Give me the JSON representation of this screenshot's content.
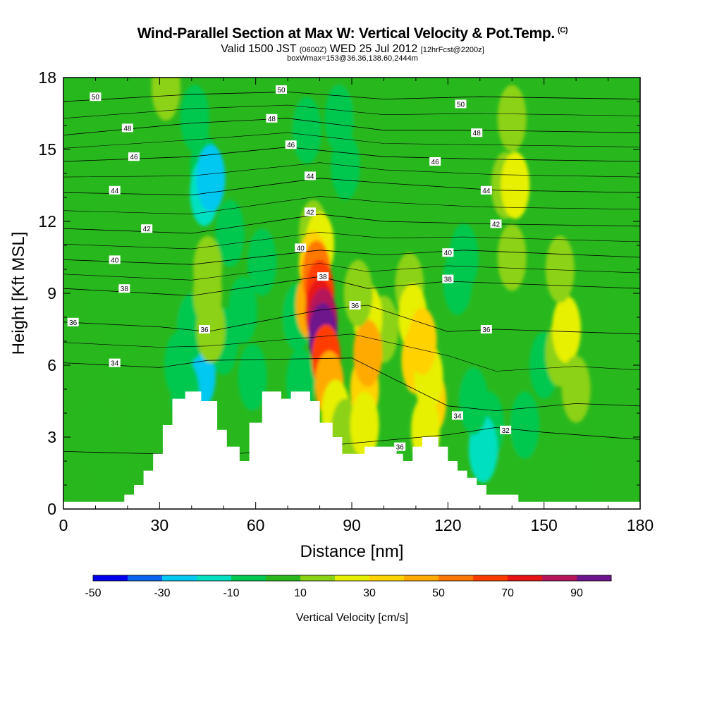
{
  "header": {
    "title": "Wind-Parallel Section at Max W: Vertical Velocity & Pot.Temp.",
    "title_mark": "(C)",
    "valid_prefix": "Valid 1500 JST",
    "valid_utc": "(0600Z)",
    "valid_date": "WED 25 Jul 2012",
    "forecast": "[12hrFcst@2200z]",
    "box_info": "boxWmax=153@36.36,138.60,2444m"
  },
  "chart_data": {
    "type": "heatmap",
    "xlabel": "Distance [nm]",
    "ylabel": "Height [Kft MSL]",
    "xlim": [
      0,
      180
    ],
    "ylim": [
      0,
      18
    ],
    "x_ticks": [
      "0",
      "30",
      "60",
      "90",
      "120",
      "150",
      "180"
    ],
    "y_ticks": [
      "0",
      "3",
      "6",
      "9",
      "12",
      "15",
      "18"
    ],
    "colorbar": {
      "label": "Vertical Velocity [cm/s]",
      "tick_labels": [
        "-50",
        "-30",
        "-10",
        "10",
        "30",
        "50",
        "70",
        "90"
      ],
      "levels": [
        -50,
        -40,
        -30,
        -20,
        -10,
        0,
        10,
        20,
        30,
        40,
        50,
        60,
        70,
        80,
        90,
        100
      ],
      "colors": [
        "#0000ee",
        "#0a64f0",
        "#00c8f0",
        "#00e0c0",
        "#00c850",
        "#28b81e",
        "#8cd214",
        "#e6f000",
        "#ffd200",
        "#ffaa00",
        "#ff7800",
        "#ff3c00",
        "#e61414",
        "#b4145a",
        "#6e148c"
      ]
    },
    "background_color": "#28b81e",
    "velocity_cells": [
      {
        "x": 2,
        "y": 16.8,
        "v": 5
      },
      {
        "x": 18,
        "y": 17.5,
        "v": 5
      },
      {
        "x": 32,
        "y": 17.6,
        "v": 12
      },
      {
        "x": 50,
        "y": 17.7,
        "v": 5
      },
      {
        "x": 70,
        "y": 16.5,
        "v": 5
      },
      {
        "x": 88,
        "y": 17.2,
        "v": 5
      },
      {
        "x": 105,
        "y": 16.8,
        "v": 5
      },
      {
        "x": 120,
        "y": 17.2,
        "v": 5
      },
      {
        "x": 10,
        "y": 14.5,
        "v": 5
      },
      {
        "x": 8,
        "y": 11.5,
        "v": 5
      },
      {
        "x": 12,
        "y": 9,
        "v": 5
      },
      {
        "x": 18,
        "y": 6.5,
        "v": 5
      },
      {
        "x": 10,
        "y": 3,
        "v": 5
      },
      {
        "x": 15,
        "y": 1.2,
        "v": 5
      },
      {
        "x": 35,
        "y": 9,
        "v": 5
      },
      {
        "x": 25,
        "y": 4,
        "v": 5
      },
      {
        "x": 62,
        "y": 12,
        "v": 5
      },
      {
        "x": 68,
        "y": 8,
        "v": 5
      },
      {
        "x": 100,
        "y": 12,
        "v": 5
      },
      {
        "x": 115,
        "y": 14,
        "v": 5
      },
      {
        "x": 125,
        "y": 6,
        "v": 5
      },
      {
        "x": 165,
        "y": 14,
        "v": 5
      },
      {
        "x": 175,
        "y": 9,
        "v": 5
      },
      {
        "x": 170,
        "y": 4,
        "v": 5
      },
      {
        "x": 160,
        "y": 1,
        "v": 5
      },
      {
        "x": 150,
        "y": 1.5,
        "v": 5
      },
      {
        "x": 140,
        "y": 2.5,
        "v": 5
      },
      {
        "x": 60,
        "y": 3,
        "v": 5
      },
      {
        "x": 44,
        "y": 14.2,
        "v": -10
      },
      {
        "x": 44,
        "y": 13.2,
        "v": -20
      },
      {
        "x": 46,
        "y": 13.8,
        "v": -30
      },
      {
        "x": 41,
        "y": 16.3,
        "v": -10
      },
      {
        "x": 52,
        "y": 11.5,
        "v": -10
      },
      {
        "x": 56,
        "y": 8.3,
        "v": -10
      },
      {
        "x": 42,
        "y": 6.2,
        "v": -20
      },
      {
        "x": 43,
        "y": 5.6,
        "v": -30
      },
      {
        "x": 40,
        "y": 7.6,
        "v": -10
      },
      {
        "x": 36,
        "y": 6,
        "v": -10
      },
      {
        "x": 38,
        "y": 4.8,
        "v": -10
      },
      {
        "x": 50,
        "y": 7,
        "v": -10
      },
      {
        "x": 59,
        "y": 5.5,
        "v": -10
      },
      {
        "x": 62,
        "y": 10.3,
        "v": -10
      },
      {
        "x": 76,
        "y": 15.8,
        "v": -10
      },
      {
        "x": 86,
        "y": 16.3,
        "v": -10
      },
      {
        "x": 88,
        "y": 14.3,
        "v": -10
      },
      {
        "x": 73,
        "y": 8,
        "v": -10
      },
      {
        "x": 74,
        "y": 5.3,
        "v": -10
      },
      {
        "x": 123,
        "y": 9.5,
        "v": -10
      },
      {
        "x": 125,
        "y": 10.5,
        "v": -10
      },
      {
        "x": 133,
        "y": 3.5,
        "v": -10
      },
      {
        "x": 131,
        "y": 2.5,
        "v": -20
      },
      {
        "x": 128,
        "y": 4.5,
        "v": -10
      },
      {
        "x": 150,
        "y": 6,
        "v": -10
      },
      {
        "x": 144,
        "y": 3.5,
        "v": -10
      },
      {
        "x": 45,
        "y": 9,
        "v": 10
      },
      {
        "x": 46,
        "y": 7.5,
        "v": 10
      },
      {
        "x": 138,
        "y": 13.5,
        "v": 10
      },
      {
        "x": 140,
        "y": 16.3,
        "v": 10
      },
      {
        "x": 140,
        "y": 10.5,
        "v": 10
      },
      {
        "x": 155,
        "y": 6.5,
        "v": 10
      },
      {
        "x": 157,
        "y": 7.5,
        "v": 20
      },
      {
        "x": 160,
        "y": 5,
        "v": 10
      },
      {
        "x": 155,
        "y": 10,
        "v": 10
      },
      {
        "x": 141,
        "y": 13.5,
        "v": 20
      },
      {
        "x": 45,
        "y": 10,
        "v": 10
      },
      {
        "x": 100,
        "y": 7.5,
        "v": 10
      },
      {
        "x": 78,
        "y": 11.5,
        "v": 10
      },
      {
        "x": 80,
        "y": 11,
        "v": 20
      },
      {
        "x": 78,
        "y": 10.2,
        "v": 30
      },
      {
        "x": 77,
        "y": 8.5,
        "v": 40
      },
      {
        "x": 79,
        "y": 9.8,
        "v": 50
      },
      {
        "x": 80,
        "y": 9,
        "v": 60
      },
      {
        "x": 80,
        "y": 8.2,
        "v": 70
      },
      {
        "x": 81,
        "y": 7.8,
        "v": 80
      },
      {
        "x": 81,
        "y": 7.2,
        "v": 90
      },
      {
        "x": 82,
        "y": 6.3,
        "v": 60
      },
      {
        "x": 83,
        "y": 5.2,
        "v": 40
      },
      {
        "x": 85,
        "y": 4,
        "v": 20
      },
      {
        "x": 88,
        "y": 3.2,
        "v": 10
      },
      {
        "x": 95,
        "y": 8,
        "v": 20
      },
      {
        "x": 94,
        "y": 5,
        "v": 30
      },
      {
        "x": 95,
        "y": 6.5,
        "v": 40
      },
      {
        "x": 94,
        "y": 3.5,
        "v": 20
      },
      {
        "x": 92,
        "y": 9,
        "v": 10
      },
      {
        "x": 108,
        "y": 9.3,
        "v": 10
      },
      {
        "x": 109,
        "y": 8,
        "v": 20
      },
      {
        "x": 110,
        "y": 6.2,
        "v": 30
      },
      {
        "x": 115,
        "y": 4.5,
        "v": 30
      },
      {
        "x": 114,
        "y": 5.5,
        "v": 20
      },
      {
        "x": 113,
        "y": 3.3,
        "v": 20
      },
      {
        "x": 112,
        "y": 7,
        "v": 30
      }
    ],
    "terrain_profile": [
      [
        0,
        0.3
      ],
      [
        19,
        0.3
      ],
      [
        19,
        0.6
      ],
      [
        22,
        0.6
      ],
      [
        22,
        1.0
      ],
      [
        25,
        1.0
      ],
      [
        25,
        1.6
      ],
      [
        28,
        1.6
      ],
      [
        28,
        2.3
      ],
      [
        31,
        2.3
      ],
      [
        31,
        3.5
      ],
      [
        34,
        3.5
      ],
      [
        34,
        4.6
      ],
      [
        38,
        4.6
      ],
      [
        38,
        4.9
      ],
      [
        43,
        4.9
      ],
      [
        43,
        4.5
      ],
      [
        48,
        4.5
      ],
      [
        48,
        3.3
      ],
      [
        51,
        3.3
      ],
      [
        51,
        2.6
      ],
      [
        55,
        2.6
      ],
      [
        55,
        2.0
      ],
      [
        58,
        2.0
      ],
      [
        58,
        3.6
      ],
      [
        62,
        3.6
      ],
      [
        62,
        4.9
      ],
      [
        68,
        4.9
      ],
      [
        68,
        4.6
      ],
      [
        71,
        4.6
      ],
      [
        71,
        4.9
      ],
      [
        77,
        4.9
      ],
      [
        77,
        4.5
      ],
      [
        80,
        4.5
      ],
      [
        80,
        3.6
      ],
      [
        84,
        3.6
      ],
      [
        84,
        3.0
      ],
      [
        87,
        3.0
      ],
      [
        87,
        2.3
      ],
      [
        94,
        2.3
      ],
      [
        94,
        2.6
      ],
      [
        104,
        2.6
      ],
      [
        104,
        2.3
      ],
      [
        106,
        2.3
      ],
      [
        106,
        2.0
      ],
      [
        109,
        2.0
      ],
      [
        109,
        2.6
      ],
      [
        112,
        2.6
      ],
      [
        112,
        3.0
      ],
      [
        117,
        3.0
      ],
      [
        117,
        2.6
      ],
      [
        120,
        2.6
      ],
      [
        120,
        2.0
      ],
      [
        123,
        2.0
      ],
      [
        123,
        1.6
      ],
      [
        126,
        1.6
      ],
      [
        126,
        1.3
      ],
      [
        129,
        1.3
      ],
      [
        129,
        1.0
      ],
      [
        132,
        1.0
      ],
      [
        132,
        0.6
      ],
      [
        142,
        0.6
      ],
      [
        142,
        0.3
      ],
      [
        180,
        0.3
      ]
    ],
    "isentropes": [
      {
        "value": 32,
        "points": [
          [
            0,
            2.4
          ],
          [
            30,
            2.3
          ],
          [
            45,
            2.2
          ],
          [
            120,
            3.1
          ],
          [
            135,
            3.4
          ],
          [
            150,
            3.2
          ],
          [
            180,
            2.9
          ]
        ]
      },
      {
        "value": 34,
        "points": [
          [
            0,
            6.1
          ],
          [
            30,
            5.9
          ],
          [
            45,
            6.2
          ],
          [
            90,
            6.3
          ],
          [
            120,
            4.3
          ],
          [
            135,
            4.1
          ],
          [
            160,
            4.4
          ],
          [
            180,
            4.3
          ]
        ]
      },
      {
        "value": 36,
        "points": [
          [
            0,
            7.8
          ],
          [
            30,
            7.6
          ],
          [
            45,
            7.4
          ],
          [
            80,
            8.3
          ],
          [
            95,
            8.5
          ],
          [
            120,
            7.4
          ],
          [
            135,
            7.5
          ],
          [
            180,
            7.3
          ]
        ]
      },
      {
        "value": 38,
        "points": [
          [
            0,
            9.2
          ],
          [
            40,
            8.9
          ],
          [
            80,
            9.7
          ],
          [
            95,
            9.2
          ],
          [
            120,
            9.5
          ],
          [
            180,
            9.2
          ]
        ]
      },
      {
        "value": 40,
        "points": [
          [
            0,
            10.4
          ],
          [
            40,
            10.2
          ],
          [
            80,
            10.8
          ],
          [
            100,
            10.6
          ],
          [
            125,
            10.8
          ],
          [
            180,
            10.5
          ]
        ]
      },
      {
        "value": 42,
        "points": [
          [
            0,
            11.7
          ],
          [
            40,
            11.5
          ],
          [
            80,
            12.3
          ],
          [
            100,
            12
          ],
          [
            130,
            11.9
          ],
          [
            180,
            11.8
          ]
        ]
      },
      {
        "value": 44,
        "points": [
          [
            0,
            13.2
          ],
          [
            40,
            13.1
          ],
          [
            80,
            13.8
          ],
          [
            100,
            13.6
          ],
          [
            135,
            13.3
          ],
          [
            180,
            13.2
          ]
        ]
      },
      {
        "value": 46,
        "points": [
          [
            0,
            14.5
          ],
          [
            40,
            14.7
          ],
          [
            70,
            15.1
          ],
          [
            100,
            14.7
          ],
          [
            130,
            14.6
          ],
          [
            180,
            14.5
          ]
        ]
      },
      {
        "value": 48,
        "points": [
          [
            0,
            15.6
          ],
          [
            40,
            16.1
          ],
          [
            70,
            16.3
          ],
          [
            100,
            15.8
          ],
          [
            130,
            15.8
          ],
          [
            180,
            15.7
          ]
        ]
      },
      {
        "value": 50,
        "points": [
          [
            0,
            17.0
          ],
          [
            40,
            17.3
          ],
          [
            70,
            17.4
          ],
          [
            100,
            17.1
          ],
          [
            130,
            17.2
          ],
          [
            180,
            17.1
          ]
        ]
      }
    ],
    "contour_labels": [
      {
        "text": "50",
        "x": 10,
        "y": 17.2
      },
      {
        "text": "50",
        "x": 68,
        "y": 17.5
      },
      {
        "text": "50",
        "x": 124,
        "y": 16.9
      },
      {
        "text": "48",
        "x": 20,
        "y": 15.9
      },
      {
        "text": "48",
        "x": 65,
        "y": 16.3
      },
      {
        "text": "48",
        "x": 129,
        "y": 15.7
      },
      {
        "text": "46",
        "x": 22,
        "y": 14.7
      },
      {
        "text": "46",
        "x": 71,
        "y": 15.2
      },
      {
        "text": "46",
        "x": 116,
        "y": 14.5
      },
      {
        "text": "44",
        "x": 16,
        "y": 13.3
      },
      {
        "text": "44",
        "x": 77,
        "y": 13.9
      },
      {
        "text": "44",
        "x": 132,
        "y": 13.3
      },
      {
        "text": "42",
        "x": 26,
        "y": 11.7
      },
      {
        "text": "42",
        "x": 77,
        "y": 12.4
      },
      {
        "text": "42",
        "x": 135,
        "y": 11.9
      },
      {
        "text": "40",
        "x": 16,
        "y": 10.4
      },
      {
        "text": "40",
        "x": 74,
        "y": 10.9
      },
      {
        "text": "40",
        "x": 120,
        "y": 10.7
      },
      {
        "text": "38",
        "x": 19,
        "y": 9.2
      },
      {
        "text": "38",
        "x": 81,
        "y": 9.7
      },
      {
        "text": "38",
        "x": 120,
        "y": 9.6
      },
      {
        "text": "36",
        "x": 3,
        "y": 7.8
      },
      {
        "text": "36",
        "x": 91,
        "y": 8.5
      },
      {
        "text": "36",
        "x": 132,
        "y": 7.5
      },
      {
        "text": "36",
        "x": 44,
        "y": 7.5
      },
      {
        "text": "34",
        "x": 16,
        "y": 6.1
      },
      {
        "text": "34",
        "x": 123,
        "y": 3.9
      },
      {
        "text": "32",
        "x": 138,
        "y": 3.3
      },
      {
        "text": "36",
        "x": 105,
        "y": 2.6
      }
    ]
  }
}
